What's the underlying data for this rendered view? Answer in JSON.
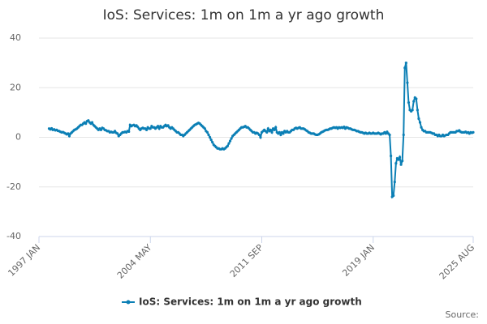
{
  "chart_data": {
    "type": "line",
    "title": "IoS: Services: 1m on 1m a yr ago growth",
    "source": "Source:",
    "categories": [
      null,
      null,
      null,
      null,
      null,
      null,
      null,
      null,
      null,
      null,
      null,
      null,
      null,
      null,
      null,
      null,
      null,
      null,
      null,
      null,
      null,
      null,
      null,
      null,
      null,
      null,
      null,
      null,
      null,
      null,
      null,
      null,
      null,
      null,
      null,
      null,
      null,
      null,
      null,
      null,
      null,
      null,
      null,
      null,
      null,
      null,
      null,
      null,
      null,
      null,
      null,
      null,
      null,
      null,
      null,
      null,
      null,
      null,
      null,
      null,
      null,
      null,
      null,
      null,
      null,
      null,
      null,
      null,
      null,
      null,
      null,
      null,
      null,
      null,
      null,
      null,
      null,
      null,
      null,
      null,
      null,
      null,
      null,
      null,
      null,
      null,
      null,
      null,
      "2004 MAY",
      null,
      null,
      null,
      null,
      null,
      null,
      null,
      null,
      null,
      null,
      null,
      null,
      null,
      null,
      null,
      null,
      null,
      null,
      null,
      null,
      null,
      null,
      null,
      null,
      null,
      null,
      null,
      null,
      null,
      null,
      null,
      null,
      null,
      null,
      null,
      null,
      null,
      null,
      null,
      null,
      null,
      null,
      null,
      null,
      null,
      null,
      null,
      null,
      null,
      null,
      null,
      null,
      null,
      null,
      null,
      null,
      null,
      null,
      null,
      null,
      null,
      null,
      null,
      null,
      null,
      null,
      null,
      null,
      null,
      null,
      null,
      null,
      null,
      null,
      null,
      null,
      null,
      null,
      null,
      null,
      null,
      null,
      null,
      null,
      null,
      null,
      null,
      "2011 SEP",
      null,
      null,
      null,
      null,
      null,
      null,
      null,
      null,
      null,
      null,
      null,
      null,
      null,
      null,
      null,
      null,
      null,
      null,
      null,
      null,
      null,
      null,
      null,
      null,
      null,
      null,
      null,
      null,
      null,
      null,
      null,
      null,
      null,
      null,
      null,
      null,
      null,
      null,
      null,
      null,
      null,
      null,
      null,
      null,
      null,
      null,
      null,
      null,
      null,
      null,
      null,
      null,
      null,
      null,
      null,
      null,
      null,
      null,
      null,
      null,
      null,
      null,
      null,
      null,
      null,
      null,
      null,
      null,
      null,
      null,
      null,
      null,
      null,
      null,
      null,
      null,
      null,
      null,
      null,
      null,
      null,
      null,
      null,
      null,
      null,
      null,
      null,
      "2019 JAN",
      null,
      null,
      null,
      null,
      null,
      null,
      null,
      null,
      null,
      null,
      null,
      null,
      null,
      null,
      null,
      null,
      null,
      null,
      null,
      null,
      null,
      null,
      null,
      null,
      null,
      null,
      null,
      null,
      null,
      null,
      null,
      null,
      null,
      null,
      null,
      null,
      null,
      null,
      null,
      null,
      null,
      null,
      null,
      null,
      null,
      null,
      null,
      null,
      null,
      null,
      null,
      null,
      null,
      null,
      null,
      null,
      null,
      null,
      null,
      null,
      null,
      null,
      null,
      null,
      null,
      null,
      null,
      null,
      null,
      null,
      null,
      null,
      null,
      null,
      null,
      null,
      null,
      null,
      "2025 AUG"
    ],
    "first_label": "1997 JAN",
    "series": [
      {
        "name": "IoS: Services: 1m on 1m a yr ago growth",
        "color": "#0b7fb5",
        "values": [
          null,
          null,
          null,
          null,
          null,
          null,
          null,
          null,
          3.5,
          3.2,
          3.6,
          3.0,
          3.2,
          2.8,
          3.0,
          2.6,
          2.5,
          2.2,
          2.0,
          2.1,
          1.8,
          1.5,
          1.2,
          1.5,
          0.5,
          1.5,
          2.0,
          2.5,
          3.0,
          3.2,
          3.5,
          4.0,
          4.5,
          5.0,
          5.0,
          5.5,
          6.0,
          5.5,
          6.5,
          6.8,
          6.0,
          5.5,
          6.0,
          5.0,
          4.5,
          4.0,
          3.5,
          3.0,
          3.5,
          3.0,
          3.8,
          3.5,
          3.0,
          2.8,
          2.5,
          2.5,
          2.0,
          2.2,
          2.0,
          2.0,
          2.5,
          1.8,
          1.5,
          0.5,
          1.0,
          1.5,
          2.0,
          2.0,
          2.2,
          2.0,
          2.5,
          2.3,
          5.0,
          4.5,
          4.8,
          5.0,
          4.5,
          4.8,
          4.2,
          3.5,
          3.0,
          3.5,
          3.8,
          3.5,
          3.5,
          3.0,
          4.0,
          3.5,
          3.5,
          4.5,
          4.0,
          4.0,
          3.5,
          4.0,
          4.5,
          3.5,
          4.5,
          4.0,
          4.0,
          4.5,
          5.0,
          4.5,
          4.8,
          4.0,
          3.5,
          4.0,
          3.5,
          3.0,
          2.5,
          2.0,
          2.0,
          1.5,
          1.0,
          1.0,
          0.5,
          1.0,
          1.5,
          2.0,
          2.5,
          3.0,
          3.5,
          4.0,
          4.5,
          5.0,
          5.2,
          5.5,
          5.8,
          5.5,
          5.0,
          4.5,
          4.0,
          3.5,
          2.5,
          2.0,
          1.0,
          0.0,
          -1.0,
          -2.0,
          -3.0,
          -3.5,
          -4.0,
          -4.5,
          -4.5,
          -4.8,
          -4.8,
          -4.5,
          -4.8,
          -4.5,
          -4.0,
          -3.5,
          -2.5,
          -1.5,
          -0.5,
          0.5,
          1.0,
          1.5,
          2.0,
          2.5,
          3.0,
          3.5,
          4.0,
          4.0,
          4.2,
          4.5,
          4.0,
          4.0,
          3.5,
          3.0,
          2.5,
          2.0,
          2.0,
          1.5,
          1.8,
          1.5,
          1.0,
          0.0,
          2.0,
          2.5,
          3.0,
          2.5,
          2.0,
          3.5,
          2.5,
          3.0,
          2.0,
          3.5,
          3.0,
          4.0,
          2.0,
          1.5,
          2.0,
          1.0,
          2.0,
          1.5,
          2.5,
          2.0,
          2.5,
          2.0,
          2.0,
          2.5,
          3.0,
          3.0,
          3.5,
          3.8,
          3.5,
          3.8,
          4.0,
          3.5,
          3.5,
          3.5,
          3.2,
          2.8,
          2.5,
          2.0,
          1.8,
          1.5,
          1.5,
          1.5,
          1.2,
          1.0,
          1.0,
          1.2,
          1.5,
          2.0,
          2.2,
          2.5,
          2.8,
          3.0,
          3.0,
          3.2,
          3.5,
          3.5,
          3.8,
          4.0,
          3.8,
          4.0,
          3.5,
          4.0,
          3.8,
          4.0,
          3.8,
          4.2,
          3.5,
          4.0,
          3.8,
          3.5,
          3.5,
          3.2,
          3.0,
          3.0,
          2.8,
          2.5,
          2.5,
          2.2,
          2.0,
          2.0,
          1.8,
          1.5,
          1.8,
          1.5,
          1.5,
          1.8,
          1.5,
          1.5,
          1.8,
          1.5,
          1.5,
          1.5,
          1.8,
          1.5,
          1.2,
          1.5,
          1.5,
          2.0,
          1.5,
          2.2,
          1.5,
          1.0,
          -7.5,
          -24.0,
          -23.5,
          -18.0,
          -10.5,
          -8.5,
          -9.0,
          -8.0,
          -11.0,
          -9.5,
          1.0,
          28.0,
          30.0,
          22.0,
          14.0,
          11.0,
          10.5,
          11.0,
          14.5,
          16.0,
          15.5,
          11.0,
          7.5,
          6.0,
          4.0,
          3.0,
          2.5,
          2.5,
          2.0,
          2.0,
          2.0,
          2.0,
          1.8,
          1.5,
          1.5,
          1.0,
          1.0,
          0.5,
          1.0,
          0.5,
          0.5,
          1.0,
          0.5,
          0.8,
          1.0,
          1.0,
          1.5,
          2.0,
          2.0,
          2.0,
          2.0,
          2.0,
          2.5,
          2.5,
          2.8,
          2.2,
          2.0,
          2.0,
          2.0,
          2.2,
          1.8,
          2.0,
          1.5,
          2.0,
          1.8,
          2.0
        ]
      }
    ],
    "ylim": [
      -40,
      40
    ],
    "yticks": [
      -40,
      -20,
      0,
      20,
      40
    ],
    "grid": true,
    "legend": "bottom"
  }
}
